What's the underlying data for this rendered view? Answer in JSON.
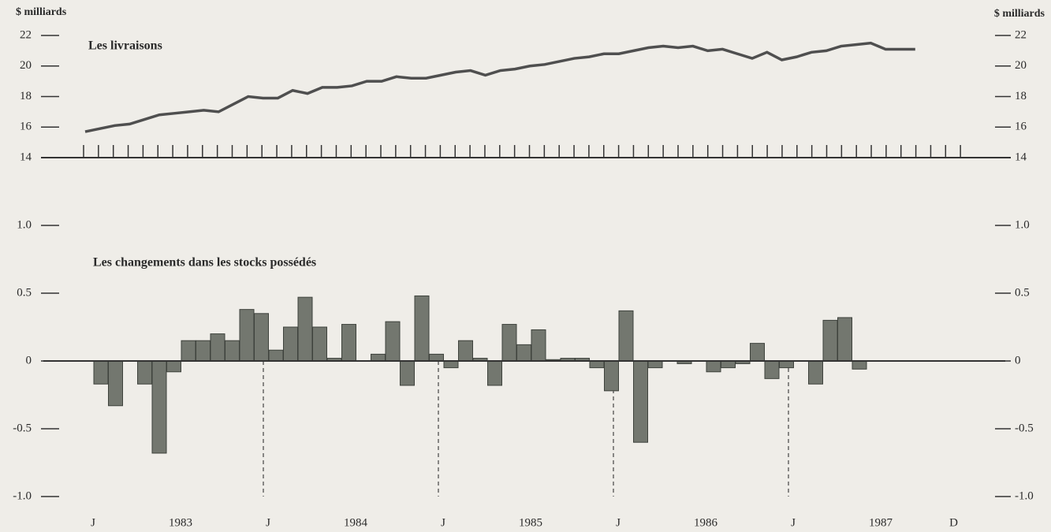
{
  "chart_data": [
    {
      "type": "line",
      "title": "Les livraisons",
      "y_label": "$ milliards",
      "color": "#4f4f4f",
      "values": [
        15.7,
        15.9,
        16.1,
        16.2,
        16.5,
        16.8,
        16.9,
        17.0,
        17.1,
        17.0,
        17.5,
        18.0,
        17.9,
        17.9,
        18.4,
        18.2,
        18.6,
        18.6,
        18.7,
        19.0,
        19.0,
        19.3,
        19.2,
        19.2,
        19.4,
        19.6,
        19.7,
        19.4,
        19.7,
        19.8,
        20.0,
        20.1,
        20.3,
        20.5,
        20.6,
        20.8,
        20.8,
        21.0,
        21.2,
        21.3,
        21.2,
        21.3,
        21.0,
        21.1,
        20.8,
        20.5,
        20.9,
        20.4,
        20.6,
        20.9,
        21.0,
        21.3,
        21.4,
        21.5,
        21.1,
        21.1,
        21.1,
        null,
        null,
        null
      ],
      "ylim": [
        14,
        22
      ],
      "yticks": [
        14,
        16,
        18,
        20,
        22
      ]
    },
    {
      "type": "bar",
      "title": "Les changements dans les stocks possédés",
      "color": "#73776f",
      "categories": [
        "J",
        null,
        null,
        null,
        null,
        null,
        "1983",
        null,
        null,
        null,
        null,
        null,
        "J",
        null,
        null,
        null,
        null,
        null,
        "1984",
        null,
        null,
        null,
        null,
        null,
        "J",
        null,
        null,
        null,
        null,
        null,
        "1985",
        null,
        null,
        null,
        null,
        null,
        "J",
        null,
        null,
        null,
        null,
        null,
        "1986",
        null,
        null,
        null,
        null,
        null,
        "J",
        null,
        null,
        null,
        null,
        null,
        "1987",
        null,
        null,
        null,
        null,
        "D"
      ],
      "values": [
        -0.17,
        -0.33,
        null,
        -0.17,
        -0.68,
        -0.08,
        0.15,
        0.15,
        0.2,
        0.15,
        0.38,
        0.35,
        0.08,
        0.25,
        0.47,
        0.25,
        0.02,
        0.27,
        null,
        0.05,
        0.29,
        -0.18,
        0.48,
        0.05,
        -0.05,
        0.15,
        0.02,
        -0.18,
        0.27,
        0.12,
        0.23,
        0.01,
        0.02,
        0.02,
        -0.05,
        -0.22,
        0.37,
        -0.6,
        -0.05,
        null,
        -0.02,
        null,
        -0.08,
        -0.05,
        -0.02,
        0.13,
        -0.13,
        -0.05,
        null,
        -0.17,
        0.3,
        0.32,
        -0.06,
        null,
        null,
        null,
        null,
        null,
        null,
        null
      ],
      "ylim": [
        -1.0,
        1.0
      ],
      "yticks": [
        {
          "value": -1.0,
          "label": "-1.0"
        },
        {
          "value": -0.5,
          "label": "-0.5"
        },
        0,
        0.5,
        {
          "value": 1.0,
          "label": "1.0"
        }
      ]
    }
  ]
}
